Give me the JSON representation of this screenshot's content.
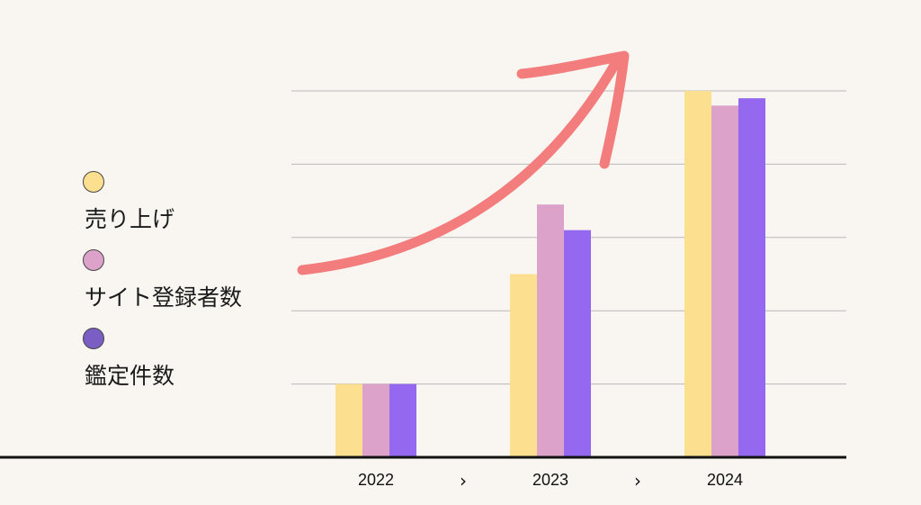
{
  "chart_data": {
    "type": "bar",
    "categories": [
      "2022",
      "2023",
      "2024"
    ],
    "category_separator": "›",
    "series": [
      {
        "name": "売り上げ",
        "color": "#fde08f",
        "values": [
          1,
          2.5,
          5
        ]
      },
      {
        "name": "サイト登録者数",
        "color": "#dda2c9",
        "values": [
          1,
          3.45,
          4.8
        ]
      },
      {
        "name": "鑑定件数",
        "color": "#9468ef",
        "values": [
          1,
          3.1,
          4.9
        ]
      }
    ],
    "ylim": [
      0,
      5
    ],
    "grid": true,
    "legend": "left",
    "annotation": {
      "type": "upward-arrow",
      "color": "#f37d7d"
    }
  },
  "colors": {
    "background": "#f9f6f1",
    "grid": "#b9b9b9",
    "axis": "#111111",
    "legend_dot_border": "#444444",
    "legend_dot_fills": [
      "#fde08f",
      "#dda2c9",
      "#7a5ec4"
    ]
  }
}
